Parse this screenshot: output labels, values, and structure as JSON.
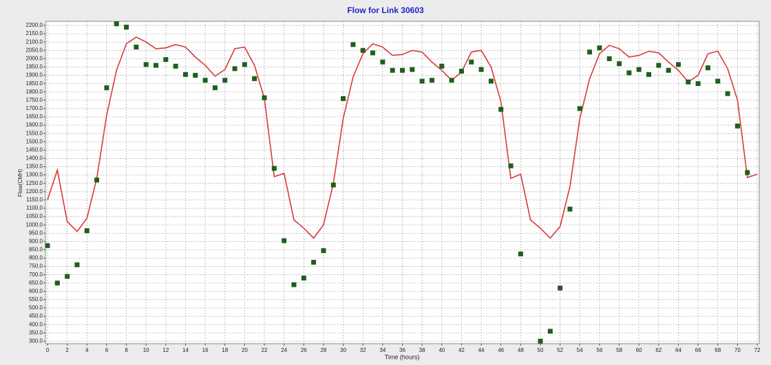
{
  "chart_data": {
    "type": "line",
    "title": "Flow for Link 30603",
    "x_label": "Time (hours)",
    "y_label": "Flow(CMH)",
    "grid": true,
    "xlim": [
      0,
      72
    ],
    "ylim": [
      285,
      2225
    ],
    "xticks": [
      0,
      2,
      4,
      6,
      8,
      10,
      12,
      14,
      16,
      18,
      20,
      22,
      24,
      26,
      28,
      30,
      32,
      34,
      36,
      38,
      40,
      42,
      44,
      46,
      48,
      50,
      52,
      54,
      56,
      58,
      60,
      62,
      64,
      66,
      68,
      70,
      72
    ],
    "yticks": [
      {
        "value": 300,
        "label": "300.0"
      },
      {
        "value": 350,
        "label": "350.0"
      },
      {
        "value": 400,
        "label": "400.0"
      },
      {
        "value": 450,
        "label": "450.0"
      },
      {
        "value": 500,
        "label": "500.0"
      },
      {
        "value": 550,
        "label": "550.0"
      },
      {
        "value": 600,
        "label": "600.0"
      },
      {
        "value": 650,
        "label": "650.0"
      },
      {
        "value": 700,
        "label": "700.0"
      },
      {
        "value": 750,
        "label": "750.0"
      },
      {
        "value": 800,
        "label": "800.0"
      },
      {
        "value": 850,
        "label": "850.0"
      },
      {
        "value": 900,
        "label": "900.0"
      },
      {
        "value": 950,
        "label": "950.0"
      },
      {
        "value": 1000,
        "label": "1000.0"
      },
      {
        "value": 1050,
        "label": "1050.0"
      },
      {
        "value": 1100,
        "label": "1100.0"
      },
      {
        "value": 1150,
        "label": "1150.0"
      },
      {
        "value": 1200,
        "label": "1200.0"
      },
      {
        "value": 1250,
        "label": "1250.0"
      },
      {
        "value": 1300,
        "label": "1300.0"
      },
      {
        "value": 1350,
        "label": "1350.0"
      },
      {
        "value": 1400,
        "label": "1400.0"
      },
      {
        "value": 1450,
        "label": "1450.0"
      },
      {
        "value": 1500,
        "label": "1500.0"
      },
      {
        "value": 1550,
        "label": "1550.0"
      },
      {
        "value": 1600,
        "label": "1600.0"
      },
      {
        "value": 1650,
        "label": "1650.0"
      },
      {
        "value": 1700,
        "label": "1700.0"
      },
      {
        "value": 1750,
        "label": "1750.0"
      },
      {
        "value": 1800,
        "label": "1800.0"
      },
      {
        "value": 1850,
        "label": "1850.0"
      },
      {
        "value": 1900,
        "label": "1900.0"
      },
      {
        "value": 1950,
        "label": "1950.0"
      },
      {
        "value": 2000,
        "label": "2000.0"
      },
      {
        "value": 2050,
        "label": "2050.0"
      },
      {
        "value": 2100,
        "label": "2100.0"
      },
      {
        "value": 2150,
        "label": "2150.0"
      },
      {
        "value": 2200,
        "label": "2200.0"
      }
    ],
    "x": [
      0,
      1,
      2,
      3,
      4,
      5,
      6,
      7,
      8,
      9,
      10,
      11,
      12,
      13,
      14,
      15,
      16,
      17,
      18,
      19,
      20,
      21,
      22,
      23,
      24,
      25,
      26,
      27,
      28,
      29,
      30,
      31,
      32,
      33,
      34,
      35,
      36,
      37,
      38,
      39,
      40,
      41,
      42,
      43,
      44,
      45,
      46,
      47,
      48,
      49,
      50,
      51,
      52,
      53,
      54,
      55,
      56,
      57,
      58,
      59,
      60,
      61,
      62,
      63,
      64,
      65,
      66,
      67,
      68,
      69,
      70,
      71,
      72
    ],
    "series": [
      {
        "type": "line",
        "color": "#d9383a",
        "values": [
          1150,
          1330,
          1020,
          960,
          1040,
          1280,
          1660,
          1930,
          2090,
          2130,
          2100,
          2060,
          2065,
          2085,
          2070,
          2010,
          1960,
          1895,
          1935,
          2060,
          2070,
          1960,
          1760,
          1290,
          1310,
          1030,
          980,
          920,
          1000,
          1250,
          1640,
          1890,
          2030,
          2090,
          2070,
          2020,
          2025,
          2050,
          2040,
          1980,
          1930,
          1870,
          1920,
          2040,
          2050,
          1950,
          1740,
          1280,
          1305,
          1030,
          980,
          920,
          990,
          1230,
          1640,
          1880,
          2030,
          2080,
          2060,
          2010,
          2020,
          2045,
          2035,
          1980,
          1930,
          1860,
          1900,
          2030,
          2045,
          1940,
          1750,
          1285,
          1305
        ]
      },
      {
        "type": "scatter",
        "color": "#1e5f1e",
        "values": [
          875,
          650,
          690,
          760,
          965,
          1270,
          1825,
          2210,
          2190,
          2070,
          1965,
          1960,
          1995,
          1955,
          1905,
          1900,
          1870,
          1825,
          1870,
          1940,
          1965,
          1880,
          1765,
          1340,
          905,
          640,
          680,
          775,
          845,
          1240,
          1760,
          2085,
          2050,
          2035,
          1980,
          1930,
          1930,
          1935,
          1865,
          1870,
          1955,
          1870,
          1925,
          1980,
          1935,
          1865,
          1695,
          1355,
          825,
          null,
          300,
          360,
          620,
          1095,
          1700,
          2040,
          2065,
          2000,
          1970,
          1915,
          1935,
          1905,
          1960,
          1930,
          1965,
          1860,
          1850,
          1945,
          1865,
          1790,
          1595,
          1315,
          null
        ]
      }
    ]
  }
}
